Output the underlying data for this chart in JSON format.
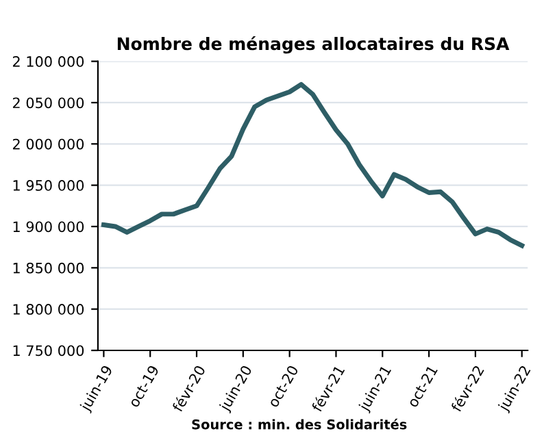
{
  "chart_data": {
    "type": "line",
    "title": "Nombre de ménages allocataires du RSA",
    "categories": [
      "juin-19",
      null,
      null,
      null,
      "oct-19",
      null,
      null,
      null,
      "févr-20",
      null,
      null,
      null,
      "juin-20",
      null,
      null,
      null,
      "oct-20",
      null,
      null,
      null,
      "févr-21",
      null,
      null,
      null,
      "juin-21",
      null,
      null,
      null,
      "oct-21",
      null,
      null,
      null,
      "févr-22",
      null,
      null,
      null,
      "juin-22"
    ],
    "series": [
      {
        "color": "#2e5e66",
        "values": [
          1902000,
          1900000,
          1893000,
          1900000,
          1907000,
          1915000,
          1915000,
          1920000,
          1925000,
          1947000,
          1970000,
          1985000,
          2018000,
          2045000,
          2053000,
          2058000,
          2063000,
          2072000,
          2060000,
          2038000,
          2017000,
          2000000,
          1975000,
          1955000,
          1937000,
          1963000,
          1957000,
          1948000,
          1941000,
          1942000,
          1930000,
          1910000,
          1891000,
          1897000,
          1893000,
          1884000,
          1877000
        ]
      }
    ],
    "ylim": [
      1750000,
      2100000
    ],
    "yticks": [
      {
        "value": 1750000,
        "label": "1 750 000"
      },
      {
        "value": 1800000,
        "label": "1 800 000"
      },
      {
        "value": 1850000,
        "label": "1 850 000"
      },
      {
        "value": 1900000,
        "label": "1 900 000"
      },
      {
        "value": 1950000,
        "label": "1 950 000"
      },
      {
        "value": 2000000,
        "label": "2 000 000"
      },
      {
        "value": 2050000,
        "label": "2 050 000"
      },
      {
        "value": 2100000,
        "label": "2 100 000"
      }
    ],
    "grid": "y",
    "marker": "none",
    "line_style": "solid",
    "annotations": [
      "Source : min. des Solidarités"
    ]
  }
}
